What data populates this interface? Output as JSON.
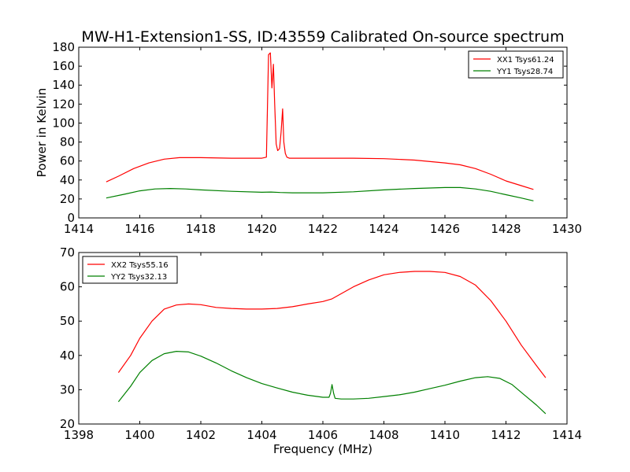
{
  "figure": {
    "title": "MW-H1-Extension1-SS, ID:43559 Calibrated On-source spectrum"
  },
  "chart_data": [
    {
      "type": "line",
      "title": "MW-H1-Extension1-SS, ID:43559 Calibrated On-source spectrum",
      "xlabel": "",
      "ylabel": "Power in Kelvin",
      "xlim": [
        1414,
        1430
      ],
      "ylim": [
        0,
        180
      ],
      "xticks": [
        1414,
        1416,
        1418,
        1420,
        1422,
        1424,
        1426,
        1428,
        1430
      ],
      "yticks": [
        0,
        20,
        40,
        60,
        80,
        100,
        120,
        140,
        160,
        180
      ],
      "grid": false,
      "legend_position": "top-right",
      "series": [
        {
          "name": "XX1 Tsys61.24",
          "color": "#ff0000",
          "x": [
            1414.9,
            1415.3,
            1415.8,
            1416.3,
            1416.8,
            1417.3,
            1418.0,
            1419.0,
            1420.0,
            1420.15,
            1420.22,
            1420.28,
            1420.33,
            1420.38,
            1420.42,
            1420.47,
            1420.52,
            1420.58,
            1420.63,
            1420.68,
            1420.72,
            1420.77,
            1420.82,
            1420.9,
            1421.0,
            1422.0,
            1423.0,
            1424.0,
            1425.0,
            1426.0,
            1426.5,
            1427.0,
            1427.5,
            1428.0,
            1428.5,
            1428.9
          ],
          "y": [
            38,
            44,
            52,
            58,
            62,
            63.5,
            63.5,
            63,
            63,
            64,
            172,
            174,
            137,
            162,
            120,
            78,
            71,
            73,
            90,
            115,
            80,
            68,
            64,
            63,
            63,
            63,
            63,
            62.5,
            61,
            58,
            56,
            52,
            46,
            39,
            34,
            30
          ]
        },
        {
          "name": "YY1 Tsys28.74",
          "color": "#008000",
          "x": [
            1414.9,
            1415.5,
            1416.0,
            1416.5,
            1417.0,
            1417.5,
            1418.0,
            1419.0,
            1420.0,
            1420.3,
            1420.6,
            1421.0,
            1422.0,
            1423.0,
            1424.0,
            1425.0,
            1426.0,
            1426.5,
            1427.0,
            1427.5,
            1428.0,
            1428.5,
            1428.9
          ],
          "y": [
            21,
            25,
            28.5,
            30.5,
            31,
            30.5,
            29.5,
            28,
            27,
            27.3,
            26.8,
            26.5,
            26.5,
            27.5,
            29.5,
            31,
            32,
            32,
            30.5,
            28,
            24.5,
            21,
            18
          ]
        }
      ]
    },
    {
      "type": "line",
      "title": "",
      "xlabel": "Frequency (MHz)",
      "ylabel": "",
      "xlim": [
        1398,
        1414
      ],
      "ylim": [
        20,
        70
      ],
      "xticks": [
        1398,
        1400,
        1402,
        1404,
        1406,
        1408,
        1410,
        1412,
        1414
      ],
      "yticks": [
        20,
        30,
        40,
        50,
        60,
        70
      ],
      "grid": false,
      "legend_position": "top-left",
      "series": [
        {
          "name": "XX2 Tsys55.16",
          "color": "#ff0000",
          "x": [
            1399.3,
            1399.7,
            1400.0,
            1400.4,
            1400.8,
            1401.2,
            1401.6,
            1402.0,
            1402.5,
            1403.0,
            1403.5,
            1404.0,
            1404.5,
            1405.0,
            1405.5,
            1406.0,
            1406.3,
            1406.5,
            1407.0,
            1407.5,
            1408.0,
            1408.5,
            1409.0,
            1409.5,
            1410.0,
            1410.5,
            1411.0,
            1411.5,
            1412.0,
            1412.5,
            1413.0,
            1413.3
          ],
          "y": [
            35,
            40,
            45,
            50,
            53.5,
            54.7,
            55,
            54.8,
            54,
            53.7,
            53.5,
            53.5,
            53.7,
            54.2,
            55,
            55.7,
            56.5,
            57.5,
            60,
            62,
            63.5,
            64.2,
            64.5,
            64.5,
            64.2,
            63,
            60.5,
            56,
            50,
            43,
            37,
            33.5
          ]
        },
        {
          "name": "YY2 Tsys32.13",
          "color": "#008000",
          "x": [
            1399.3,
            1399.7,
            1400.0,
            1400.4,
            1400.8,
            1401.2,
            1401.6,
            1402.0,
            1402.5,
            1403.0,
            1403.5,
            1404.0,
            1404.5,
            1405.0,
            1405.5,
            1406.0,
            1406.2,
            1406.25,
            1406.3,
            1406.35,
            1406.4,
            1406.6,
            1407.0,
            1407.5,
            1408.0,
            1408.5,
            1409.0,
            1409.5,
            1410.0,
            1410.5,
            1411.0,
            1411.4,
            1411.8,
            1412.2,
            1412.6,
            1413.0,
            1413.3
          ],
          "y": [
            26.5,
            31,
            35,
            38.5,
            40.5,
            41.2,
            41,
            39.8,
            37.8,
            35.5,
            33.5,
            31.8,
            30.5,
            29.3,
            28.4,
            27.8,
            27.8,
            29,
            31.5,
            29,
            27.5,
            27.3,
            27.3,
            27.5,
            28,
            28.5,
            29.3,
            30.3,
            31.3,
            32.5,
            33.5,
            33.8,
            33.3,
            31.5,
            28.5,
            25.5,
            23
          ]
        }
      ]
    }
  ]
}
